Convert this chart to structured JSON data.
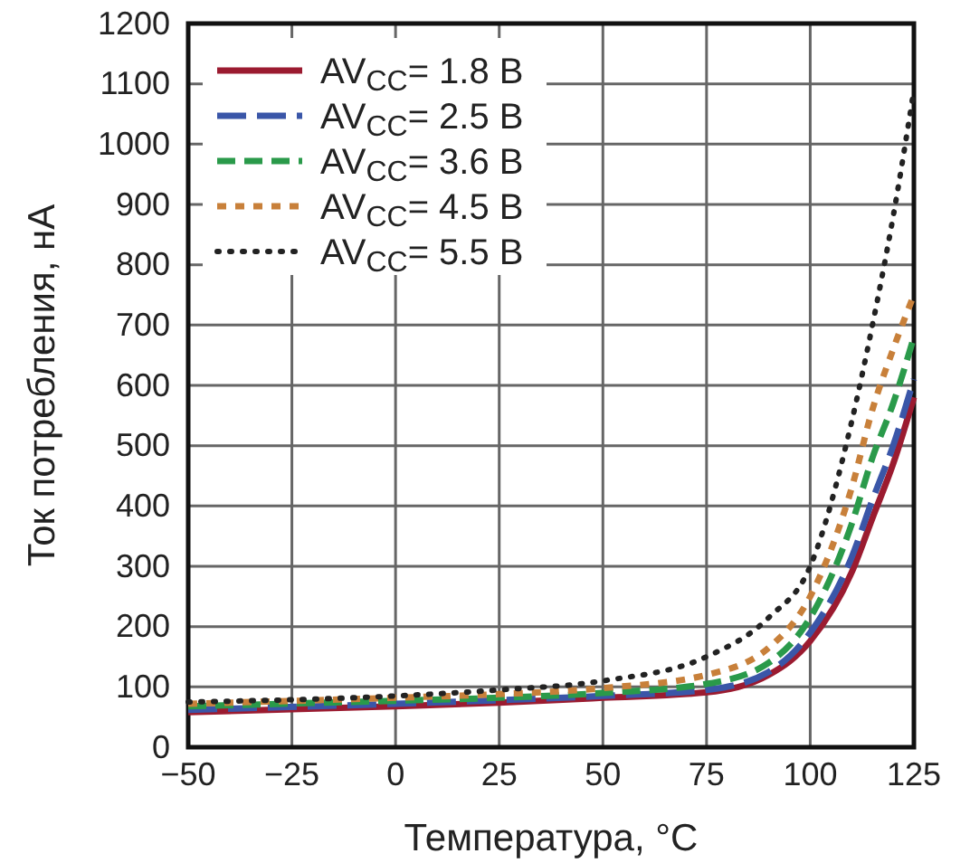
{
  "chart_data": {
    "type": "line",
    "xlabel": "Температура, °C",
    "ylabel": "Ток потребления, нА",
    "x": [
      -50,
      0,
      25,
      50,
      75,
      90,
      100,
      110,
      115,
      120,
      125
    ],
    "xlim": [
      -50,
      125
    ],
    "xticks": [
      -50,
      -25,
      0,
      25,
      50,
      75,
      100,
      125
    ],
    "ylim": [
      0,
      1200
    ],
    "yticks": [
      0,
      100,
      200,
      300,
      400,
      500,
      600,
      700,
      800,
      900,
      1000,
      1100,
      1200
    ],
    "grid": true,
    "legend": "top left",
    "series": [
      {
        "name": "AV$_{CC}$= 1.8 В",
        "color": "#9b1b30",
        "line_style": "solid",
        "values": [
          58,
          68,
          74,
          82,
          91,
          120,
          176,
          290,
          380,
          470,
          580
        ]
      },
      {
        "name": "AV$_{CC}$= 2.5 В",
        "color": "#3a56a8",
        "line_style": "dashed",
        "values": [
          62,
          72,
          78,
          85,
          95,
          125,
          190,
          315,
          410,
          500,
          610
        ]
      },
      {
        "name": "AV$_{CC}$= 3.6 В",
        "color": "#2a9a4a",
        "line_style": "dashed",
        "values": [
          68,
          77,
          82,
          90,
          105,
          140,
          215,
          370,
          480,
          570,
          680
        ]
      },
      {
        "name": "AV$_{CC}$= 4.5 В",
        "color": "#c8803a",
        "line_style": "dashed",
        "values": [
          72,
          82,
          88,
          98,
          120,
          165,
          250,
          430,
          560,
          660,
          750
        ]
      },
      {
        "name": "AV$_{CC}$= 5.5 В",
        "color": "#222222",
        "line_style": "dotted",
        "values": [
          75,
          85,
          95,
          110,
          150,
          215,
          300,
          540,
          700,
          880,
          1090
        ]
      }
    ]
  }
}
